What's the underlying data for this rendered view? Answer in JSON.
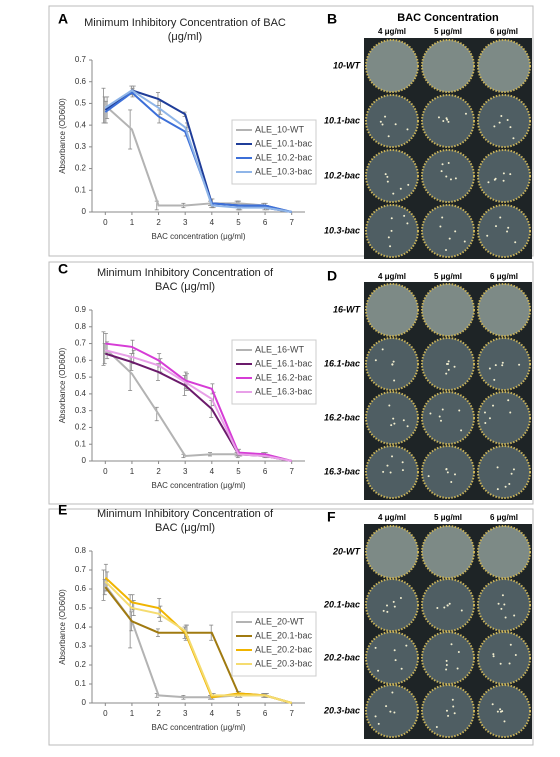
{
  "chart_data": [
    {
      "type": "line",
      "panel": "A",
      "title": [
        "Minimum Inhibitory Concentration of BAC",
        "(μg/ml)"
      ],
      "x_label": "BAC concentration (μg/ml)",
      "y_label": "Absorbance (OD600)",
      "x": [
        0,
        1,
        2,
        3,
        4,
        5,
        6,
        7
      ],
      "xlim": [
        -0.5,
        7.5
      ],
      "xticks": [
        0,
        1,
        2,
        3,
        4,
        5,
        6,
        7
      ],
      "ylim": [
        0,
        0.7
      ],
      "yticks": [
        0,
        0.1,
        0.2,
        0.3,
        0.4,
        0.5,
        0.6,
        0.7
      ],
      "series": [
        {
          "name": "ALE_10-WT",
          "color": "#b3b3b3",
          "values": [
            0.49,
            0.38,
            0.03,
            0.03,
            0.04,
            0.04,
            0.03,
            0.0
          ],
          "errors": [
            0.08,
            0.09,
            0.02,
            0.01,
            0.01,
            0.01,
            0.01,
            0.0
          ]
        },
        {
          "name": "ALE_10.1-bac",
          "color": "#1f3d99",
          "values": [
            0.47,
            0.56,
            0.52,
            0.45,
            0.04,
            0.03,
            0.02,
            0.0
          ],
          "errors": [
            0.06,
            0.02,
            0.03,
            0.01,
            0.02,
            0.02,
            0.01,
            0.0
          ]
        },
        {
          "name": "ALE_10.2-bac",
          "color": "#3c6fd8",
          "values": [
            0.46,
            0.55,
            0.44,
            0.37,
            0.04,
            0.03,
            0.03,
            0.0
          ],
          "errors": [
            0.05,
            0.02,
            0.03,
            0.02,
            0.02,
            0.02,
            0.01,
            0.0
          ]
        },
        {
          "name": "ALE_10.3-bac",
          "color": "#8fb5e8",
          "values": [
            0.48,
            0.56,
            0.48,
            0.39,
            0.03,
            0.02,
            0.02,
            0.0
          ],
          "errors": [
            0.05,
            0.02,
            0.03,
            0.02,
            0.01,
            0.01,
            0.01,
            0.0
          ]
        }
      ]
    },
    {
      "type": "line",
      "panel": "C",
      "title": [
        "Minimum Inhibitory Concentration of",
        "BAC (μg/ml)"
      ],
      "x_label": "BAC concentration (μg/ml)",
      "y_label": "Absorbance (OD600)",
      "x": [
        0,
        1,
        2,
        3,
        4,
        5,
        6,
        7
      ],
      "xlim": [
        -0.5,
        7.5
      ],
      "xticks": [
        0,
        1,
        2,
        3,
        4,
        5,
        6,
        7
      ],
      "ylim": [
        0,
        0.9
      ],
      "yticks": [
        0,
        0.1,
        0.2,
        0.3,
        0.4,
        0.5,
        0.6,
        0.7,
        0.8,
        0.9
      ],
      "series": [
        {
          "name": "ALE_16-WT",
          "color": "#b3b3b3",
          "values": [
            0.67,
            0.52,
            0.28,
            0.03,
            0.04,
            0.04,
            0.04,
            0.0
          ],
          "errors": [
            0.1,
            0.1,
            0.04,
            0.01,
            0.01,
            0.01,
            0.01,
            0.0
          ]
        },
        {
          "name": "ALE_16.1-bac",
          "color": "#6b1a6b",
          "values": [
            0.64,
            0.59,
            0.53,
            0.45,
            0.31,
            0.04,
            0.03,
            0.0
          ],
          "errors": [
            0.06,
            0.05,
            0.05,
            0.06,
            0.05,
            0.02,
            0.01,
            0.0
          ]
        },
        {
          "name": "ALE_16.2-bac",
          "color": "#d63cd6",
          "values": [
            0.7,
            0.68,
            0.6,
            0.48,
            0.43,
            0.05,
            0.04,
            0.0
          ],
          "errors": [
            0.06,
            0.04,
            0.04,
            0.05,
            0.03,
            0.02,
            0.01,
            0.0
          ]
        },
        {
          "name": "ALE_16.3-bac",
          "color": "#e8a0e8",
          "values": [
            0.66,
            0.62,
            0.57,
            0.47,
            0.37,
            0.04,
            0.03,
            0.0
          ],
          "errors": [
            0.05,
            0.04,
            0.04,
            0.05,
            0.04,
            0.01,
            0.01,
            0.0
          ]
        }
      ]
    },
    {
      "type": "line",
      "panel": "E",
      "title": [
        "Minimum Inhibitory Concentration of",
        "BAC (μg/ml)"
      ],
      "x_label": "BAC concentration (μg/ml)",
      "y_label": "Absorbance (OD600)",
      "x": [
        0,
        1,
        2,
        3,
        4,
        5,
        6,
        7
      ],
      "xlim": [
        -0.5,
        7.5
      ],
      "xticks": [
        0,
        1,
        2,
        3,
        4,
        5,
        6,
        7
      ],
      "ylim": [
        0,
        0.8
      ],
      "yticks": [
        0,
        0.1,
        0.2,
        0.3,
        0.4,
        0.5,
        0.6,
        0.7,
        0.8
      ],
      "series": [
        {
          "name": "ALE_20-WT",
          "color": "#b3b3b3",
          "values": [
            0.62,
            0.43,
            0.04,
            0.03,
            0.03,
            0.04,
            0.04,
            0.0
          ],
          "errors": [
            0.08,
            0.14,
            0.01,
            0.01,
            0.01,
            0.01,
            0.01,
            0.0
          ]
        },
        {
          "name": "ALE_20.1-bac",
          "color": "#a07a10",
          "values": [
            0.61,
            0.43,
            0.37,
            0.37,
            0.37,
            0.05,
            0.04,
            0.0
          ],
          "errors": [
            0.04,
            0.05,
            0.02,
            0.03,
            0.04,
            0.01,
            0.01,
            0.0
          ]
        },
        {
          "name": "ALE_20.2-bac",
          "color": "#f0b400",
          "values": [
            0.66,
            0.53,
            0.5,
            0.37,
            0.03,
            0.05,
            0.04,
            0.0
          ],
          "errors": [
            0.07,
            0.04,
            0.05,
            0.04,
            0.01,
            0.01,
            0.01,
            0.0
          ]
        },
        {
          "name": "ALE_20.3-bac",
          "color": "#f5dc70",
          "values": [
            0.64,
            0.5,
            0.47,
            0.38,
            0.04,
            0.04,
            0.04,
            0.0
          ],
          "errors": [
            0.05,
            0.04,
            0.04,
            0.03,
            0.01,
            0.01,
            0.01,
            0.0
          ]
        }
      ]
    }
  ],
  "photo_panels": [
    {
      "panel": "B",
      "header": "BAC Concentration",
      "columns": [
        "4 μg/ml",
        "5 μg/ml",
        "6 μg/ml"
      ],
      "rows": [
        "10-WT",
        "10.1-bac",
        "10.2-bac",
        "10.3-bac"
      ]
    },
    {
      "panel": "D",
      "columns": [
        "4 μg/ml",
        "5 μg/ml",
        "6 μg/ml"
      ],
      "rows": [
        "16-WT",
        "16.1-bac",
        "16.2-bac",
        "16.3-bac"
      ]
    },
    {
      "panel": "F",
      "columns": [
        "4 μg/ml",
        "5 μg/ml",
        "6 μg/ml"
      ],
      "rows": [
        "20-WT",
        "20.1-bac",
        "20.2-bac",
        "20.3-bac"
      ]
    }
  ]
}
